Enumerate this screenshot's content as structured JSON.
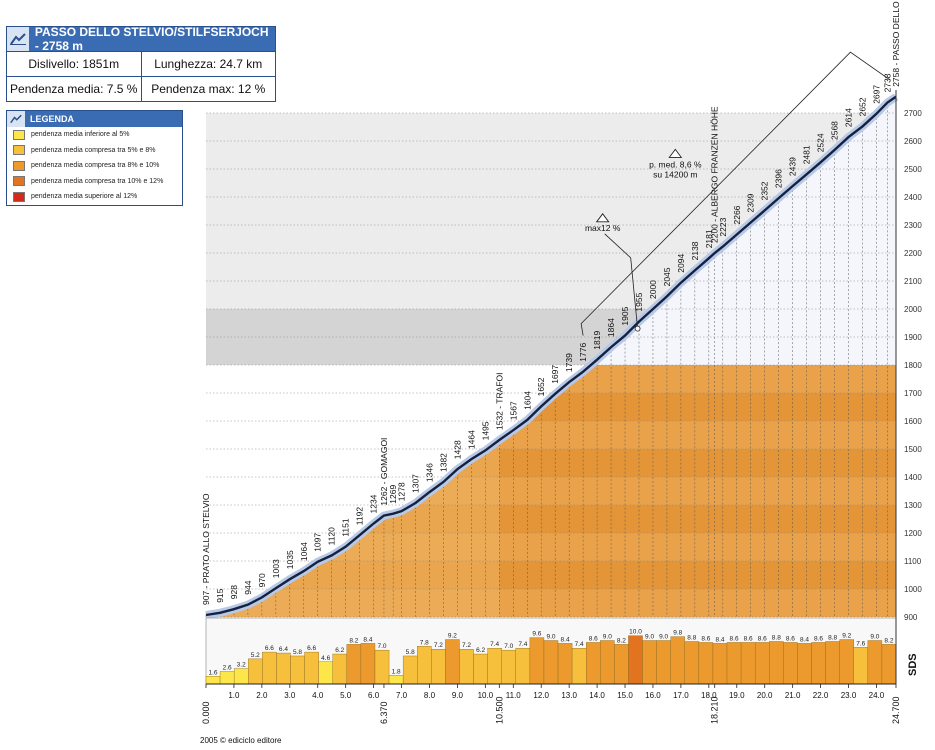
{
  "info": {
    "title": "PASSO DELLO STELVIO/STILFSERJOCH - 2758 m",
    "dislivello": "Dislivello: 1851m",
    "lunghezza": "Lunghezza: 24.7 km",
    "pendenza_media": "Pendenza media: 7.5 %",
    "pendenza_max": "Pendenza max: 12 %",
    "icon": "mountain-icon"
  },
  "legend": {
    "title": "LEGENDA",
    "items": [
      {
        "label": "pendenza media inferiore al 5%",
        "color": "#fde64a"
      },
      {
        "label": "pendenza media compresa tra 5% e 8%",
        "color": "#f6bf3c"
      },
      {
        "label": "pendenza media compresa tra 8% e 10%",
        "color": "#ec9a2e"
      },
      {
        "label": "pendenza media compresa tra  10% e 12%",
        "color": "#e2741f"
      },
      {
        "label": "pendenza media superiore al 12%",
        "color": "#d42a1c"
      }
    ]
  },
  "footer": "2005 © ediciclo editore",
  "brand": "SDS",
  "chart_data": {
    "type": "area",
    "xlabel": "",
    "ylabel": "",
    "xlim": [
      0,
      24.7
    ],
    "ylim": [
      900,
      2700
    ],
    "yticks": [
      900,
      1000,
      1100,
      1200,
      1300,
      1400,
      1500,
      1600,
      1700,
      1800,
      1900,
      2000,
      2100,
      2200,
      2300,
      2400,
      2500,
      2600,
      2700
    ],
    "xticks": [
      "0.000",
      "1.0",
      "2.0",
      "3.0",
      "4.0",
      "5.0",
      "6.0",
      "6.370",
      "7.0",
      "8.0",
      "9.0",
      "10.0",
      "10.500",
      "11.0",
      "12.0",
      "13.0",
      "14.0",
      "15.0",
      "16.0",
      "17.0",
      "18.0",
      "18.210",
      "19.0",
      "20.0",
      "21.0",
      "22.0",
      "23.0",
      "24.0",
      "24.700"
    ],
    "xtick_values": [
      0,
      1,
      2,
      3,
      4,
      5,
      6,
      6.37,
      7,
      8,
      9,
      10,
      10.5,
      11,
      12,
      13,
      14,
      15,
      16,
      17,
      18,
      18.21,
      19,
      20,
      21,
      22,
      23,
      24,
      24.7
    ],
    "profile": [
      {
        "x": 0.0,
        "y": 907,
        "label": "907 - PRATO ALLO STELVIO"
      },
      {
        "x": 0.5,
        "y": 915,
        "label": "915"
      },
      {
        "x": 1.0,
        "y": 928,
        "label": "928"
      },
      {
        "x": 1.5,
        "y": 944,
        "label": "944"
      },
      {
        "x": 2.0,
        "y": 970,
        "label": "970"
      },
      {
        "x": 2.5,
        "y": 1003,
        "label": "1003"
      },
      {
        "x": 3.0,
        "y": 1035,
        "label": "1035"
      },
      {
        "x": 3.5,
        "y": 1064,
        "label": "1064"
      },
      {
        "x": 4.0,
        "y": 1097,
        "label": "1097"
      },
      {
        "x": 4.5,
        "y": 1120,
        "label": "1120"
      },
      {
        "x": 5.0,
        "y": 1151,
        "label": "1151"
      },
      {
        "x": 5.5,
        "y": 1192,
        "label": "1192"
      },
      {
        "x": 6.0,
        "y": 1234,
        "label": "1234"
      },
      {
        "x": 6.37,
        "y": 1262,
        "label": "1262 - GOMAGOI"
      },
      {
        "x": 6.7,
        "y": 1269,
        "label": "1269"
      },
      {
        "x": 7.0,
        "y": 1278,
        "label": "1278"
      },
      {
        "x": 7.5,
        "y": 1307,
        "label": "1307"
      },
      {
        "x": 8.0,
        "y": 1346,
        "label": "1346"
      },
      {
        "x": 8.5,
        "y": 1382,
        "label": "1382"
      },
      {
        "x": 9.0,
        "y": 1428,
        "label": "1428"
      },
      {
        "x": 9.5,
        "y": 1464,
        "label": "1464"
      },
      {
        "x": 10.0,
        "y": 1495,
        "label": "1495"
      },
      {
        "x": 10.5,
        "y": 1532,
        "label": "1532 - TRAFOI"
      },
      {
        "x": 11.0,
        "y": 1567,
        "label": "1567"
      },
      {
        "x": 11.5,
        "y": 1604,
        "label": "1604"
      },
      {
        "x": 12.0,
        "y": 1652,
        "label": "1652"
      },
      {
        "x": 12.5,
        "y": 1697,
        "label": "1697"
      },
      {
        "x": 13.0,
        "y": 1739,
        "label": "1739"
      },
      {
        "x": 13.5,
        "y": 1776,
        "label": "1776"
      },
      {
        "x": 14.0,
        "y": 1819,
        "label": "1819"
      },
      {
        "x": 14.5,
        "y": 1864,
        "label": "1864"
      },
      {
        "x": 15.0,
        "y": 1905,
        "label": "1905"
      },
      {
        "x": 15.5,
        "y": 1955,
        "label": "1955"
      },
      {
        "x": 16.0,
        "y": 2000,
        "label": "2000"
      },
      {
        "x": 16.5,
        "y": 2045,
        "label": "2045"
      },
      {
        "x": 17.0,
        "y": 2094,
        "label": "2094"
      },
      {
        "x": 17.5,
        "y": 2138,
        "label": "2138"
      },
      {
        "x": 18.0,
        "y": 2181,
        "label": "2181"
      },
      {
        "x": 18.21,
        "y": 2200,
        "label": "2200 - ALBERGO FRANZEN HÖHE"
      },
      {
        "x": 18.5,
        "y": 2223,
        "label": "2223"
      },
      {
        "x": 19.0,
        "y": 2266,
        "label": "2266"
      },
      {
        "x": 19.5,
        "y": 2309,
        "label": "2309"
      },
      {
        "x": 20.0,
        "y": 2352,
        "label": "2352"
      },
      {
        "x": 20.5,
        "y": 2396,
        "label": "2396"
      },
      {
        "x": 21.0,
        "y": 2439,
        "label": "2439"
      },
      {
        "x": 21.5,
        "y": 2481,
        "label": "2481"
      },
      {
        "x": 22.0,
        "y": 2524,
        "label": "2524"
      },
      {
        "x": 22.5,
        "y": 2568,
        "label": "2568"
      },
      {
        "x": 23.0,
        "y": 2614,
        "label": "2614"
      },
      {
        "x": 23.5,
        "y": 2652,
        "label": "2652"
      },
      {
        "x": 24.0,
        "y": 2697,
        "label": "2697"
      },
      {
        "x": 24.4,
        "y": 2738,
        "label": "2738"
      },
      {
        "x": 24.7,
        "y": 2758,
        "label": "2758 - PASSO DELLO STELVIO"
      }
    ],
    "gradients": [
      1.6,
      2.6,
      3.2,
      5.2,
      6.6,
      6.4,
      5.8,
      6.6,
      4.6,
      6.2,
      8.2,
      8.4,
      7.0,
      1.8,
      5.8,
      7.8,
      7.2,
      9.2,
      7.2,
      6.2,
      7.4,
      7.0,
      7.4,
      9.6,
      9.0,
      8.4,
      7.4,
      8.6,
      9.0,
      8.2,
      10.0,
      9.0,
      9.0,
      9.8,
      8.8,
      8.6,
      8.4,
      8.6,
      8.6,
      8.6,
      8.8,
      8.6,
      8.4,
      8.6,
      8.8,
      9.2,
      7.6,
      9.0,
      8.2
    ],
    "annotations": [
      {
        "text": "max12 %",
        "x": 14.2
      },
      {
        "text": "p. med. 8,6 %",
        "x": 16.8
      },
      {
        "text": "su 14200 m",
        "x": 16.8
      }
    ]
  }
}
